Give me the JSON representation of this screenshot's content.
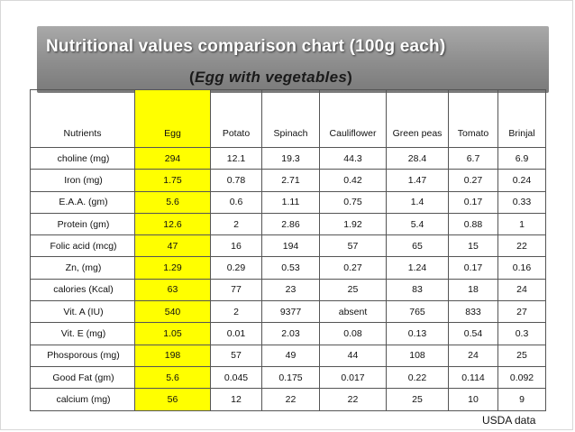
{
  "title": {
    "line1": "Nutritional values comparison chart (100g each)",
    "line2_open": "(",
    "line2_text": "Egg with vegetables",
    "line2_close": ")"
  },
  "table": {
    "headers": [
      "Nutrients",
      "Egg",
      "Potato",
      "Spinach",
      "Cauliflower",
      "Green peas",
      "Tomato",
      "Brinjal"
    ],
    "rows": [
      [
        "choline (mg)",
        "294",
        "12.1",
        "19.3",
        "44.3",
        "28.4",
        "6.7",
        "6.9"
      ],
      [
        "Iron (mg)",
        "1.75",
        "0.78",
        "2.71",
        "0.42",
        "1.47",
        "0.27",
        "0.24"
      ],
      [
        "E.A.A. (gm)",
        "5.6",
        "0.6",
        "1.11",
        "0.75",
        "1.4",
        "0.17",
        "0.33"
      ],
      [
        "Protein (gm)",
        "12.6",
        "2",
        "2.86",
        "1.92",
        "5.4",
        "0.88",
        "1"
      ],
      [
        "Folic acid (mcg)",
        "47",
        "16",
        "194",
        "57",
        "65",
        "15",
        "22"
      ],
      [
        "Zn, (mg)",
        "1.29",
        "0.29",
        "0.53",
        "0.27",
        "1.24",
        "0.17",
        "0.16"
      ],
      [
        "calories (Kcal)",
        "63",
        "77",
        "23",
        "25",
        "83",
        "18",
        "24"
      ],
      [
        "Vit. A (IU)",
        "540",
        "2",
        "9377",
        "absent",
        "765",
        "833",
        "27"
      ],
      [
        "Vit. E (mg)",
        "1.05",
        "0.01",
        "2.03",
        "0.08",
        "0.13",
        "0.54",
        "0.3"
      ],
      [
        "Phosporous (mg)",
        "198",
        "57",
        "49",
        "44",
        "108",
        "24",
        "25"
      ],
      [
        "Good Fat (gm)",
        "5.6",
        "0.045",
        "0.175",
        "0.017",
        "0.22",
        "0.114",
        "0.092"
      ],
      [
        "calcium (mg)",
        "56",
        "12",
        "22",
        "22",
        "25",
        "10",
        "9"
      ]
    ]
  },
  "source": "USDA data",
  "colors": {
    "highlight": "#ffff00",
    "title_bar": "#8d8d8d",
    "title_text": "#ffffff"
  }
}
